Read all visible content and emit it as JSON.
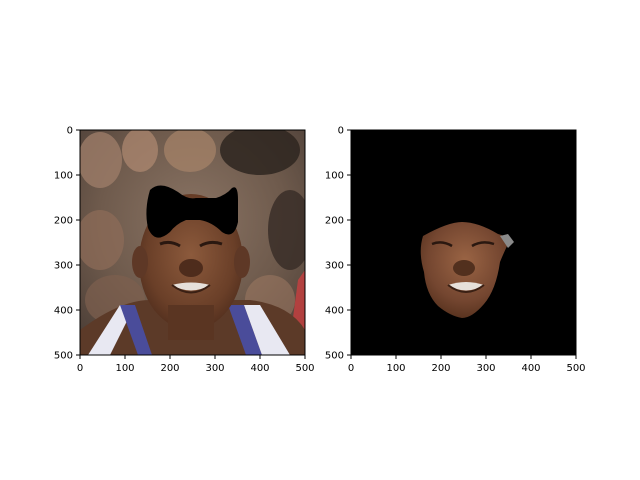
{
  "figure": {
    "background": "#ffffff",
    "axis_color": "#000000"
  },
  "panels": [
    {
      "name": "original-photo-with-mask",
      "content": "face photo with black bow-tie shaped occlusion over forehead",
      "xlim": [
        0,
        500
      ],
      "ylim": [
        500,
        0
      ],
      "x_ticks": [
        "0",
        "100",
        "200",
        "300",
        "400",
        "500"
      ],
      "y_ticks": [
        "0",
        "100",
        "200",
        "300",
        "400",
        "500"
      ]
    },
    {
      "name": "segmented-face",
      "content": "segmented face region on black background",
      "xlim": [
        0,
        500
      ],
      "ylim": [
        500,
        0
      ],
      "x_ticks": [
        "0",
        "100",
        "200",
        "300",
        "400",
        "500"
      ],
      "y_ticks": [
        "0",
        "100",
        "200",
        "300",
        "400",
        "500"
      ]
    }
  ]
}
